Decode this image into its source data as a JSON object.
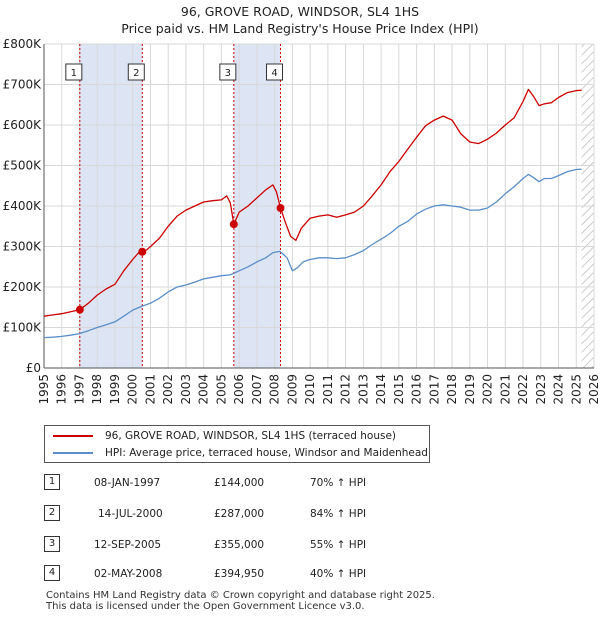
{
  "header": {
    "title_line1": "96, GROVE ROAD, WINDSOR, SL4 1HS",
    "title_line2": "Price paid vs. HM Land Registry's House Price Index (HPI)"
  },
  "colors": {
    "property_line": "#cc0000",
    "hpi_line": "#5b8ec9",
    "shade": "#dde5f5",
    "grid": "#d8d8d8",
    "hatch": "#bbbbbb"
  },
  "legend": {
    "property_label": "96, GROVE ROAD, WINDSOR, SL4 1HS (terraced house)",
    "hpi_label": "HPI: Average price, terraced house, Windsor and Maidenhead"
  },
  "transactions": [
    {
      "num": "1",
      "date": "08-JAN-1997",
      "price": "£144,000",
      "hpi": "70% ↑ HPI"
    },
    {
      "num": "2",
      "date": "14-JUL-2000",
      "price": "£287,000",
      "hpi": "84% ↑ HPI"
    },
    {
      "num": "3",
      "date": "12-SEP-2005",
      "price": "£355,000",
      "hpi": "55% ↑ HPI"
    },
    {
      "num": "4",
      "date": "02-MAY-2008",
      "price": "£394,950",
      "hpi": "40% ↑ HPI"
    }
  ],
  "footer": {
    "line1": "Contains HM Land Registry data © Crown copyright and database right 2025.",
    "line2": "This data is licensed under the Open Government Licence v3.0."
  },
  "chart_data": {
    "type": "line",
    "title": "96, GROVE ROAD, WINDSOR, SL4 1HS — Price paid vs. HM Land Registry's House Price Index (HPI)",
    "xlabel": "",
    "ylabel": "",
    "xlim": [
      1995,
      2026
    ],
    "ylim": [
      0,
      800000
    ],
    "x_ticks": [
      1995,
      1996,
      1997,
      1998,
      1999,
      2000,
      2001,
      2002,
      2003,
      2004,
      2005,
      2006,
      2007,
      2008,
      2009,
      2010,
      2011,
      2012,
      2013,
      2014,
      2015,
      2016,
      2017,
      2018,
      2019,
      2020,
      2021,
      2022,
      2023,
      2024,
      2025,
      2026
    ],
    "y_ticks": [
      0,
      100000,
      200000,
      300000,
      400000,
      500000,
      600000,
      700000,
      800000
    ],
    "y_tick_labels": [
      "£0",
      "£100K",
      "£200K",
      "£300K",
      "£400K",
      "£500K",
      "£600K",
      "£700K",
      "£800K"
    ],
    "shaded_periods": [
      [
        1997.02,
        2000.54
      ],
      [
        2005.7,
        2008.33
      ]
    ],
    "future_hatch_from": 2025.3,
    "markers": [
      {
        "label": "1",
        "x": 1997.02,
        "y": 144000
      },
      {
        "label": "2",
        "x": 2000.54,
        "y": 287000
      },
      {
        "label": "3",
        "x": 2005.7,
        "y": 355000
      },
      {
        "label": "4",
        "x": 2008.33,
        "y": 394950
      }
    ],
    "series": [
      {
        "name": "96, GROVE ROAD, WINDSOR, SL4 1HS (terraced house)",
        "x": [
          1995.0,
          1995.5,
          1996.0,
          1996.5,
          1997.02,
          1997.5,
          1998.0,
          1998.5,
          1999.0,
          1999.5,
          2000.0,
          2000.4,
          2000.54,
          2000.8,
          2001.0,
          2001.5,
          2002.0,
          2002.5,
          2003.0,
          2003.5,
          2004.0,
          2004.5,
          2005.0,
          2005.3,
          2005.5,
          2005.7,
          2006.0,
          2006.5,
          2007.0,
          2007.5,
          2007.9,
          2008.1,
          2008.33,
          2008.6,
          2008.9,
          2009.2,
          2009.5,
          2010.0,
          2010.5,
          2011.0,
          2011.5,
          2012.0,
          2012.5,
          2013.0,
          2013.5,
          2014.0,
          2014.5,
          2015.0,
          2015.5,
          2016.0,
          2016.5,
          2017.0,
          2017.5,
          2018.0,
          2018.5,
          2019.0,
          2019.5,
          2020.0,
          2020.5,
          2021.0,
          2021.5,
          2022.0,
          2022.3,
          2022.6,
          2022.9,
          2023.2,
          2023.6,
          2024.0,
          2024.5,
          2025.0,
          2025.3
        ],
        "values": [
          128000,
          131000,
          134000,
          139000,
          144000,
          160000,
          180000,
          195000,
          207000,
          240000,
          268000,
          288000,
          287000,
          292000,
          300000,
          320000,
          350000,
          375000,
          390000,
          400000,
          410000,
          413000,
          415000,
          425000,
          408000,
          355000,
          385000,
          400000,
          420000,
          440000,
          452000,
          435000,
          394950,
          360000,
          325000,
          315000,
          345000,
          370000,
          375000,
          378000,
          372000,
          378000,
          385000,
          400000,
          425000,
          452000,
          485000,
          510000,
          540000,
          570000,
          598000,
          612000,
          622000,
          612000,
          578000,
          558000,
          554000,
          565000,
          580000,
          600000,
          618000,
          658000,
          688000,
          670000,
          648000,
          652000,
          655000,
          668000,
          680000,
          685000,
          686000
        ]
      },
      {
        "name": "HPI: Average price, terraced house, Windsor and Maidenhead",
        "x": [
          1995.0,
          1995.5,
          1996.0,
          1996.5,
          1997.0,
          1997.5,
          1998.0,
          1998.5,
          1999.0,
          1999.5,
          2000.0,
          2000.5,
          2001.0,
          2001.5,
          2002.0,
          2002.5,
          2003.0,
          2003.5,
          2004.0,
          2004.5,
          2005.0,
          2005.5,
          2006.0,
          2006.5,
          2007.0,
          2007.5,
          2007.9,
          2008.3,
          2008.7,
          2009.0,
          2009.3,
          2009.6,
          2010.0,
          2010.5,
          2011.0,
          2011.5,
          2012.0,
          2012.5,
          2013.0,
          2013.5,
          2014.0,
          2014.5,
          2015.0,
          2015.5,
          2016.0,
          2016.5,
          2017.0,
          2017.5,
          2018.0,
          2018.5,
          2019.0,
          2019.5,
          2020.0,
          2020.5,
          2021.0,
          2021.5,
          2022.0,
          2022.3,
          2022.6,
          2022.9,
          2023.2,
          2023.6,
          2024.0,
          2024.5,
          2025.0,
          2025.3
        ],
        "values": [
          75000,
          76000,
          78000,
          81000,
          85000,
          92000,
          100000,
          107000,
          114000,
          128000,
          143000,
          152000,
          160000,
          172000,
          188000,
          200000,
          205000,
          212000,
          220000,
          224000,
          228000,
          230000,
          240000,
          250000,
          262000,
          272000,
          285000,
          288000,
          272000,
          240000,
          248000,
          262000,
          268000,
          272000,
          272000,
          270000,
          272000,
          280000,
          290000,
          305000,
          318000,
          332000,
          350000,
          362000,
          380000,
          392000,
          400000,
          403000,
          400000,
          397000,
          390000,
          390000,
          395000,
          410000,
          430000,
          448000,
          468000,
          478000,
          470000,
          460000,
          468000,
          468000,
          475000,
          485000,
          490000,
          491000
        ]
      }
    ]
  }
}
